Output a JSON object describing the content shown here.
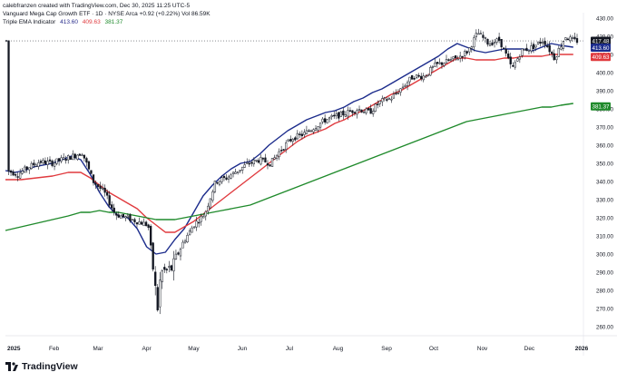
{
  "header": {
    "credit": "calebfranzen created with TradingView.com, Dec 30, 2025 11:25 UTC-5",
    "symbol_line": "Vanguard Mega Cap Growth ETF · 1D · NYSE Arca  +0.92 (+0.22%)  Vol 86.59K",
    "indicator_name": "Triple EMA Indicator",
    "indicator_values": [
      "413.60",
      "409.63",
      "381.37"
    ]
  },
  "footer": {
    "logo_text": "TradingView",
    "logo_icon": "tradingview-logo-icon"
  },
  "colors": {
    "candle_up": "#ffffff",
    "candle_down": "#131722",
    "ema_fast": "#1c2c8c",
    "ema_mid": "#e03a3e",
    "ema_slow": "#1f8a2b",
    "last_price_bg": "#131722",
    "axis_text": "#131722"
  },
  "chart_data": {
    "type": "candlestick",
    "title": "Vanguard Mega Cap Growth ETF",
    "x_tick_labels": [
      "2025",
      "Feb",
      "Mar",
      "Apr",
      "May",
      "Jun",
      "Jul",
      "Aug",
      "Sep",
      "Oct",
      "Nov",
      "Dec",
      "2026"
    ],
    "y_tick_labels": [
      260,
      270,
      280,
      290,
      300,
      310,
      320,
      330,
      340,
      350,
      360,
      370,
      380,
      390,
      400,
      410,
      420,
      430
    ],
    "ylim": [
      255,
      433
    ],
    "xlim": [
      "2025-01-01",
      "2026-01-01"
    ],
    "price_labels": [
      {
        "name": "Last price",
        "value": "417.48"
      },
      {
        "name": "EMA fast",
        "value": "413.60"
      },
      {
        "name": "EMA mid",
        "value": "409.63"
      },
      {
        "name": "EMA slow",
        "value": "381.37"
      }
    ],
    "closes": [
      {
        "date": "2025-01-02",
        "value": 346
      },
      {
        "date": "2025-01-09",
        "value": 344
      },
      {
        "date": "2025-01-16",
        "value": 348
      },
      {
        "date": "2025-01-23",
        "value": 351
      },
      {
        "date": "2025-01-30",
        "value": 350
      },
      {
        "date": "2025-02-06",
        "value": 352
      },
      {
        "date": "2025-02-13",
        "value": 354
      },
      {
        "date": "2025-02-19",
        "value": 356
      },
      {
        "date": "2025-02-26",
        "value": 340
      },
      {
        "date": "2025-03-05",
        "value": 334
      },
      {
        "date": "2025-03-12",
        "value": 322
      },
      {
        "date": "2025-03-19",
        "value": 320
      },
      {
        "date": "2025-03-26",
        "value": 318
      },
      {
        "date": "2025-04-02",
        "value": 316
      },
      {
        "date": "2025-04-08",
        "value": 270
      },
      {
        "date": "2025-04-10",
        "value": 290
      },
      {
        "date": "2025-04-17",
        "value": 292
      },
      {
        "date": "2025-04-24",
        "value": 306
      },
      {
        "date": "2025-05-01",
        "value": 316
      },
      {
        "date": "2025-05-08",
        "value": 322
      },
      {
        "date": "2025-05-15",
        "value": 340
      },
      {
        "date": "2025-05-22",
        "value": 342
      },
      {
        "date": "2025-05-29",
        "value": 346
      },
      {
        "date": "2025-06-05",
        "value": 350
      },
      {
        "date": "2025-06-12",
        "value": 352
      },
      {
        "date": "2025-06-19",
        "value": 350
      },
      {
        "date": "2025-06-26",
        "value": 358
      },
      {
        "date": "2025-07-03",
        "value": 364
      },
      {
        "date": "2025-07-10",
        "value": 366
      },
      {
        "date": "2025-07-17",
        "value": 370
      },
      {
        "date": "2025-07-24",
        "value": 374
      },
      {
        "date": "2025-07-31",
        "value": 376
      },
      {
        "date": "2025-08-07",
        "value": 378
      },
      {
        "date": "2025-08-14",
        "value": 380
      },
      {
        "date": "2025-08-21",
        "value": 378
      },
      {
        "date": "2025-08-28",
        "value": 384
      },
      {
        "date": "2025-09-04",
        "value": 386
      },
      {
        "date": "2025-09-11",
        "value": 392
      },
      {
        "date": "2025-09-18",
        "value": 398
      },
      {
        "date": "2025-09-25",
        "value": 398
      },
      {
        "date": "2025-10-02",
        "value": 404
      },
      {
        "date": "2025-10-09",
        "value": 406
      },
      {
        "date": "2025-10-16",
        "value": 408
      },
      {
        "date": "2025-10-23",
        "value": 412
      },
      {
        "date": "2025-10-29",
        "value": 422
      },
      {
        "date": "2025-11-05",
        "value": 416
      },
      {
        "date": "2025-11-12",
        "value": 418
      },
      {
        "date": "2025-11-20",
        "value": 402
      },
      {
        "date": "2025-11-26",
        "value": 412
      },
      {
        "date": "2025-12-03",
        "value": 414
      },
      {
        "date": "2025-12-10",
        "value": 418
      },
      {
        "date": "2025-12-17",
        "value": 408
      },
      {
        "date": "2025-12-24",
        "value": 420
      },
      {
        "date": "2025-12-29",
        "value": 417.48
      }
    ],
    "series": [
      {
        "name": "Triple EMA fast",
        "color": "#1c2c8c",
        "points": [
          [
            0,
            346
          ],
          [
            6,
            345
          ],
          [
            12,
            346
          ],
          [
            18,
            348
          ],
          [
            24,
            349
          ],
          [
            30,
            350
          ],
          [
            36,
            352
          ],
          [
            42,
            354
          ],
          [
            48,
            352
          ],
          [
            54,
            344
          ],
          [
            60,
            334
          ],
          [
            66,
            326
          ],
          [
            72,
            321
          ],
          [
            78,
            320
          ],
          [
            84,
            314
          ],
          [
            90,
            304
          ],
          [
            96,
            300
          ],
          [
            102,
            301
          ],
          [
            108,
            308
          ],
          [
            114,
            314
          ],
          [
            120,
            323
          ],
          [
            126,
            332
          ],
          [
            132,
            338
          ],
          [
            138,
            343
          ],
          [
            144,
            347
          ],
          [
            150,
            350
          ],
          [
            156,
            351
          ],
          [
            162,
            355
          ],
          [
            168,
            360
          ],
          [
            174,
            364
          ],
          [
            180,
            368
          ],
          [
            186,
            371
          ],
          [
            192,
            374
          ],
          [
            198,
            376
          ],
          [
            204,
            378
          ],
          [
            210,
            379
          ],
          [
            216,
            381
          ],
          [
            222,
            384
          ],
          [
            228,
            386
          ],
          [
            234,
            389
          ],
          [
            240,
            391
          ],
          [
            246,
            394
          ],
          [
            252,
            397
          ],
          [
            258,
            400
          ],
          [
            264,
            403
          ],
          [
            270,
            406
          ],
          [
            276,
            409
          ],
          [
            282,
            413
          ],
          [
            288,
            416
          ],
          [
            294,
            414
          ],
          [
            300,
            412
          ],
          [
            306,
            411
          ],
          [
            312,
            412
          ],
          [
            318,
            413
          ],
          [
            324,
            413
          ],
          [
            330,
            413
          ],
          [
            336,
            412
          ],
          [
            342,
            414
          ],
          [
            348,
            416
          ],
          [
            354,
            415
          ],
          [
            362,
            414
          ]
        ]
      },
      {
        "name": "Triple EMA mid",
        "color": "#e03a3e",
        "points": [
          [
            0,
            341
          ],
          [
            10,
            341
          ],
          [
            20,
            342
          ],
          [
            30,
            343
          ],
          [
            40,
            345
          ],
          [
            48,
            345
          ],
          [
            54,
            342
          ],
          [
            60,
            338
          ],
          [
            66,
            334
          ],
          [
            72,
            331
          ],
          [
            78,
            328
          ],
          [
            84,
            325
          ],
          [
            90,
            320
          ],
          [
            96,
            316
          ],
          [
            102,
            312
          ],
          [
            108,
            312
          ],
          [
            114,
            315
          ],
          [
            120,
            318
          ],
          [
            126,
            322
          ],
          [
            132,
            326
          ],
          [
            138,
            330
          ],
          [
            144,
            334
          ],
          [
            150,
            338
          ],
          [
            156,
            342
          ],
          [
            162,
            346
          ],
          [
            168,
            350
          ],
          [
            174,
            354
          ],
          [
            180,
            358
          ],
          [
            186,
            362
          ],
          [
            192,
            365
          ],
          [
            198,
            367
          ],
          [
            204,
            369
          ],
          [
            210,
            372
          ],
          [
            216,
            374
          ],
          [
            222,
            377
          ],
          [
            228,
            379
          ],
          [
            234,
            382
          ],
          [
            240,
            385
          ],
          [
            246,
            388
          ],
          [
            252,
            390
          ],
          [
            258,
            393
          ],
          [
            264,
            396
          ],
          [
            270,
            399
          ],
          [
            276,
            402
          ],
          [
            282,
            405
          ],
          [
            288,
            408
          ],
          [
            294,
            408
          ],
          [
            300,
            407
          ],
          [
            306,
            407
          ],
          [
            312,
            407
          ],
          [
            318,
            408
          ],
          [
            324,
            408
          ],
          [
            330,
            409
          ],
          [
            336,
            409
          ],
          [
            342,
            409
          ],
          [
            348,
            410
          ],
          [
            354,
            410
          ],
          [
            362,
            410
          ]
        ]
      },
      {
        "name": "Triple EMA slow",
        "color": "#1f8a2b",
        "points": [
          [
            0,
            313
          ],
          [
            10,
            315
          ],
          [
            20,
            317
          ],
          [
            30,
            319
          ],
          [
            40,
            321
          ],
          [
            48,
            323
          ],
          [
            54,
            323
          ],
          [
            60,
            324
          ],
          [
            66,
            323
          ],
          [
            72,
            323
          ],
          [
            78,
            322
          ],
          [
            84,
            321
          ],
          [
            90,
            320
          ],
          [
            96,
            319
          ],
          [
            102,
            319
          ],
          [
            108,
            319
          ],
          [
            114,
            320
          ],
          [
            120,
            321
          ],
          [
            126,
            322
          ],
          [
            132,
            323
          ],
          [
            138,
            324
          ],
          [
            144,
            325
          ],
          [
            150,
            326
          ],
          [
            156,
            327
          ],
          [
            162,
            329
          ],
          [
            168,
            331
          ],
          [
            174,
            333
          ],
          [
            180,
            335
          ],
          [
            186,
            337
          ],
          [
            192,
            339
          ],
          [
            198,
            341
          ],
          [
            204,
            343
          ],
          [
            210,
            345
          ],
          [
            216,
            347
          ],
          [
            222,
            349
          ],
          [
            228,
            351
          ],
          [
            234,
            353
          ],
          [
            240,
            355
          ],
          [
            246,
            357
          ],
          [
            252,
            359
          ],
          [
            258,
            361
          ],
          [
            264,
            363
          ],
          [
            270,
            365
          ],
          [
            276,
            367
          ],
          [
            282,
            369
          ],
          [
            288,
            371
          ],
          [
            294,
            373
          ],
          [
            300,
            374
          ],
          [
            306,
            375
          ],
          [
            312,
            376
          ],
          [
            318,
            377
          ],
          [
            324,
            378
          ],
          [
            330,
            379
          ],
          [
            336,
            380
          ],
          [
            342,
            381
          ],
          [
            348,
            381
          ],
          [
            354,
            382
          ],
          [
            362,
            383
          ]
        ]
      }
    ]
  }
}
